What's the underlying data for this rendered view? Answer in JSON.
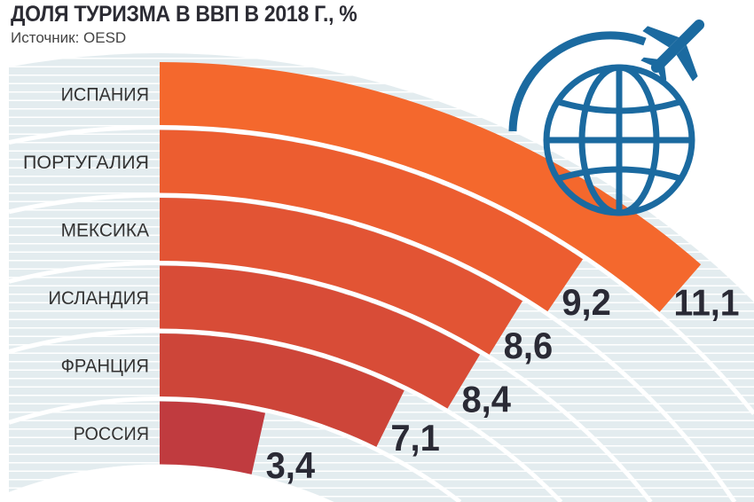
{
  "chart_data": {
    "type": "bar",
    "orientation": "radial",
    "title": "ДОЛЯ ТУРИЗМА В ВВП В 2018 Г., %",
    "subtitle": "Источник: OESD",
    "categories": [
      "ИСПАНИЯ",
      "ПОРТУГАЛИЯ",
      "МЕКСИКА",
      "ИСЛАНДИЯ",
      "ФРАНЦИЯ",
      "РОССИЯ"
    ],
    "values": [
      11.1,
      9.2,
      8.6,
      8.4,
      7.1,
      3.4
    ],
    "value_labels": [
      "11,1",
      "9,2",
      "8,6",
      "8,4",
      "7,1",
      "3,4"
    ],
    "colors": [
      "#f4682d",
      "#ec5d30",
      "#e25434",
      "#d84c37",
      "#cd4539",
      "#c03b3f"
    ],
    "background_color": "#e3ecef",
    "icon_color": "#1b6aa0",
    "icon": "globe-with-airplane-icon",
    "grid": false,
    "legend": "none"
  }
}
